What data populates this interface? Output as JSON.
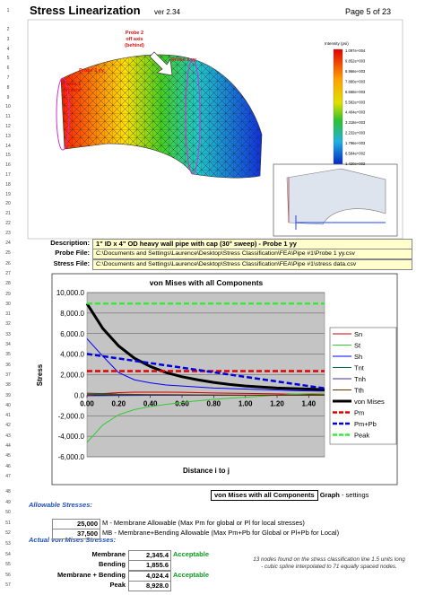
{
  "header": {
    "title": "Stress Linearization",
    "version": "ver 2.34",
    "page": "Page 5 of 23"
  },
  "row_numbers": [
    1,
    2,
    3,
    4,
    5,
    6,
    7,
    8,
    9,
    10,
    11,
    12,
    13,
    14,
    15,
    16,
    17,
    18,
    19,
    20,
    21,
    22,
    23,
    24,
    25,
    26,
    27,
    28,
    29,
    30,
    31,
    32,
    33,
    34,
    35,
    36,
    37,
    38,
    39,
    40,
    41,
    42,
    43,
    44,
    45,
    46,
    47,
    48,
    49,
    50,
    51,
    52,
    53,
    54,
    55,
    56,
    57
  ],
  "figure": {
    "labels": [
      [
        "Probe 2",
        "off axis",
        "(behind)"
      ],
      [
        "Probe 1 yy"
      ],
      [
        "Probe 1",
        "off axis"
      ],
      [
        "Probe 2 yy"
      ]
    ],
    "legend_title": "Intensity (psi)",
    "legend_values": [
      "1.097e+004",
      "9.852e+003",
      "8.966e+003",
      "7.880e+003",
      "6.668e+003",
      "5.582e+003",
      "4.404e+003",
      "3.318e+003",
      "2.232e+003",
      "1.796e+003",
      "6.584e+002",
      "1.420e+002"
    ]
  },
  "fields": [
    {
      "label": "Description:",
      "value": "1\" ID x 4\" OD heavy wall pipe with cap (30° sweep) - Probe 1 yy"
    },
    {
      "label": "Probe File:",
      "value": "C:\\Documents and Settings\\Laurence\\Desktop\\Stress Classification\\FEA\\Pipe #1\\Probe 1 yy.csv"
    },
    {
      "label": "Stress File:",
      "value": "C:\\Documents and Settings\\Laurence\\Desktop\\Stress Classification\\FEA\\Pipe #1\\stress data.csv"
    }
  ],
  "chart_data": {
    "type": "line",
    "title": "von Mises with all Components",
    "x_label": "Distance i to j",
    "y_label": "Stress",
    "x": [
      0,
      0.1,
      0.2,
      0.3,
      0.4,
      0.5,
      0.6,
      0.7,
      0.8,
      0.9,
      1.0,
      1.1,
      1.2,
      1.3,
      1.4,
      1.5
    ],
    "xlim": [
      0,
      1.5
    ],
    "ylim": [
      -6000,
      10000
    ],
    "xticks": [
      {
        "value": 0,
        "label": "0.00"
      },
      {
        "value": 0.2,
        "label": "0.20"
      },
      {
        "value": 0.4,
        "label": "0.40"
      },
      {
        "value": 0.6,
        "label": "0.60"
      },
      {
        "value": 0.8,
        "label": "0.80"
      },
      {
        "value": 1.0,
        "label": "1.00"
      },
      {
        "value": 1.2,
        "label": "1.20"
      },
      {
        "value": 1.4,
        "label": "1.40"
      }
    ],
    "yticks": [
      {
        "value": 10000,
        "label": "10,000.0"
      },
      {
        "value": 8000,
        "label": "8,000.0"
      },
      {
        "value": 6000,
        "label": "6,000.0"
      },
      {
        "value": 4000,
        "label": "4,000.0"
      },
      {
        "value": 2000,
        "label": "2,000.0"
      },
      {
        "value": 0,
        "label": "0.0"
      },
      {
        "value": -2000,
        "label": "-2,000.0"
      },
      {
        "value": -4000,
        "label": "-4,000.0"
      },
      {
        "value": -6000,
        "label": "-6,000.0"
      }
    ],
    "grid": true,
    "legend": "right",
    "series": [
      {
        "name": "Sn",
        "color": "#d00000",
        "width": 1,
        "dash": false,
        "values": [
          0,
          150,
          250,
          300,
          300,
          300,
          280,
          250,
          220,
          200,
          180,
          150,
          130,
          100,
          80,
          50
        ]
      },
      {
        "name": "St",
        "color": "#33cc33",
        "width": 1,
        "dash": false,
        "values": [
          -4600,
          -2900,
          -1900,
          -1400,
          -1100,
          -900,
          -700,
          -550,
          -400,
          -300,
          -200,
          -100,
          0,
          100,
          150,
          200
        ]
      },
      {
        "name": "Sh",
        "color": "#0000ff",
        "width": 1,
        "dash": false,
        "values": [
          5500,
          3800,
          2200,
          1500,
          1200,
          1000,
          900,
          800,
          700,
          650,
          600,
          550,
          500,
          450,
          420,
          400
        ]
      },
      {
        "name": "Tnt",
        "color": "#006666",
        "width": 1,
        "dash": false,
        "values": [
          100,
          80,
          60,
          50,
          40,
          30,
          20,
          10,
          0,
          0,
          0,
          0,
          0,
          0,
          0,
          0
        ]
      },
      {
        "name": "Tnh",
        "color": "#333399",
        "width": 1,
        "dash": false,
        "values": [
          -50,
          -40,
          -30,
          -20,
          -10,
          0,
          0,
          0,
          0,
          0,
          0,
          0,
          0,
          0,
          0,
          0
        ]
      },
      {
        "name": "Tth",
        "color": "#663300",
        "width": 1,
        "dash": false,
        "values": [
          200,
          150,
          100,
          80,
          60,
          50,
          40,
          30,
          20,
          10,
          0,
          0,
          0,
          0,
          0,
          0
        ]
      },
      {
        "name": "von Mises",
        "color": "#000000",
        "width": 3,
        "dash": false,
        "values": [
          8928,
          6500,
          4800,
          3600,
          2800,
          2200,
          1800,
          1500,
          1250,
          1050,
          900,
          800,
          700,
          650,
          600,
          550
        ]
      },
      {
        "name": "Pm",
        "color": "#e00000",
        "width": 2.5,
        "dash": true,
        "values": [
          2345.4,
          2345.4,
          2345.4,
          2345.4,
          2345.4,
          2345.4,
          2345.4,
          2345.4,
          2345.4,
          2345.4,
          2345.4,
          2345.4,
          2345.4,
          2345.4,
          2345.4,
          2345.4
        ]
      },
      {
        "name": "Pm+Pb",
        "color": "#0000dd",
        "width": 2.5,
        "dash": true,
        "values": [
          4024.4,
          3800.5,
          3576.7,
          3352.8,
          3128.9,
          2905.1,
          2681.2,
          2457.3,
          2233.5,
          2009.6,
          1785.7,
          1561.9,
          1338.0,
          1114.1,
          890.3,
          666.4
        ]
      },
      {
        "name": "Peak",
        "color": "#33ee33",
        "width": 2.5,
        "dash": true,
        "values": [
          8928.0,
          8928.0,
          8928.0,
          8928.0,
          8928.0,
          8928.0,
          8928.0,
          8928.0,
          8928.0,
          8928.0,
          8928.0,
          8928.0,
          8928.0,
          8928.0,
          8928.0,
          8928.0
        ]
      }
    ]
  },
  "graph_settings": {
    "selection": "von Mises with all Components",
    "label": "Graph",
    "note": "- settings"
  },
  "allowable": {
    "heading": "Allowable Stresses:",
    "rows": [
      {
        "value": "25,000",
        "text": "M - Membrane Allowable (Max Pm for global or Pl for local stresses)"
      },
      {
        "value": "37,500",
        "text": "MB - Membrane+Bending Allowable (Max Pm+Pb for Global or Pl+Pb for Local)"
      }
    ]
  },
  "actual": {
    "heading": "Actual von Mises Stresses:",
    "rows": [
      {
        "label": "Membrane",
        "value": "2,345.4",
        "status": "Acceptable"
      },
      {
        "label": "Bending",
        "value": "1,855.6"
      },
      {
        "label": "Membrane + Bending",
        "value": "4,024.4",
        "status": "Acceptable"
      },
      {
        "label": "Peak",
        "value": "8,928.0"
      }
    ]
  },
  "note": "13 nodes found on the stress classification line 1.5 units long - cubic spline interpolated to 71 equally spaced nodes."
}
